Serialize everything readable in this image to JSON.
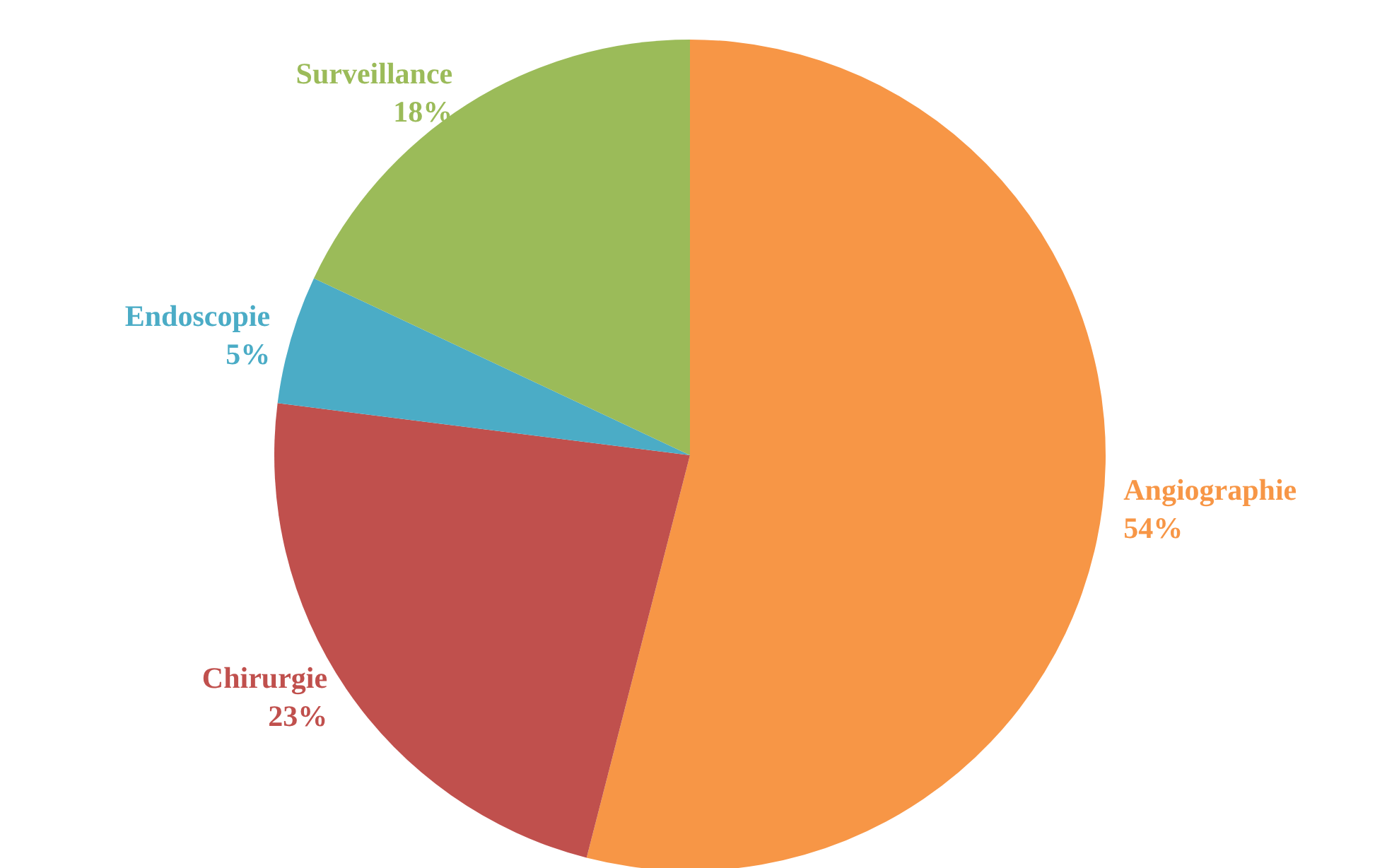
{
  "chart_data": {
    "type": "pie",
    "categories": [
      "Angiographie",
      "Chirurgie",
      "Endoscopie",
      "Surveillance"
    ],
    "values": [
      54,
      23,
      5,
      18
    ],
    "colors": [
      "#f79646",
      "#c0504d",
      "#4bacc6",
      "#9bbb59"
    ],
    "value_labels": [
      "54%",
      "23%",
      "5%",
      "18%"
    ],
    "legend": false
  }
}
